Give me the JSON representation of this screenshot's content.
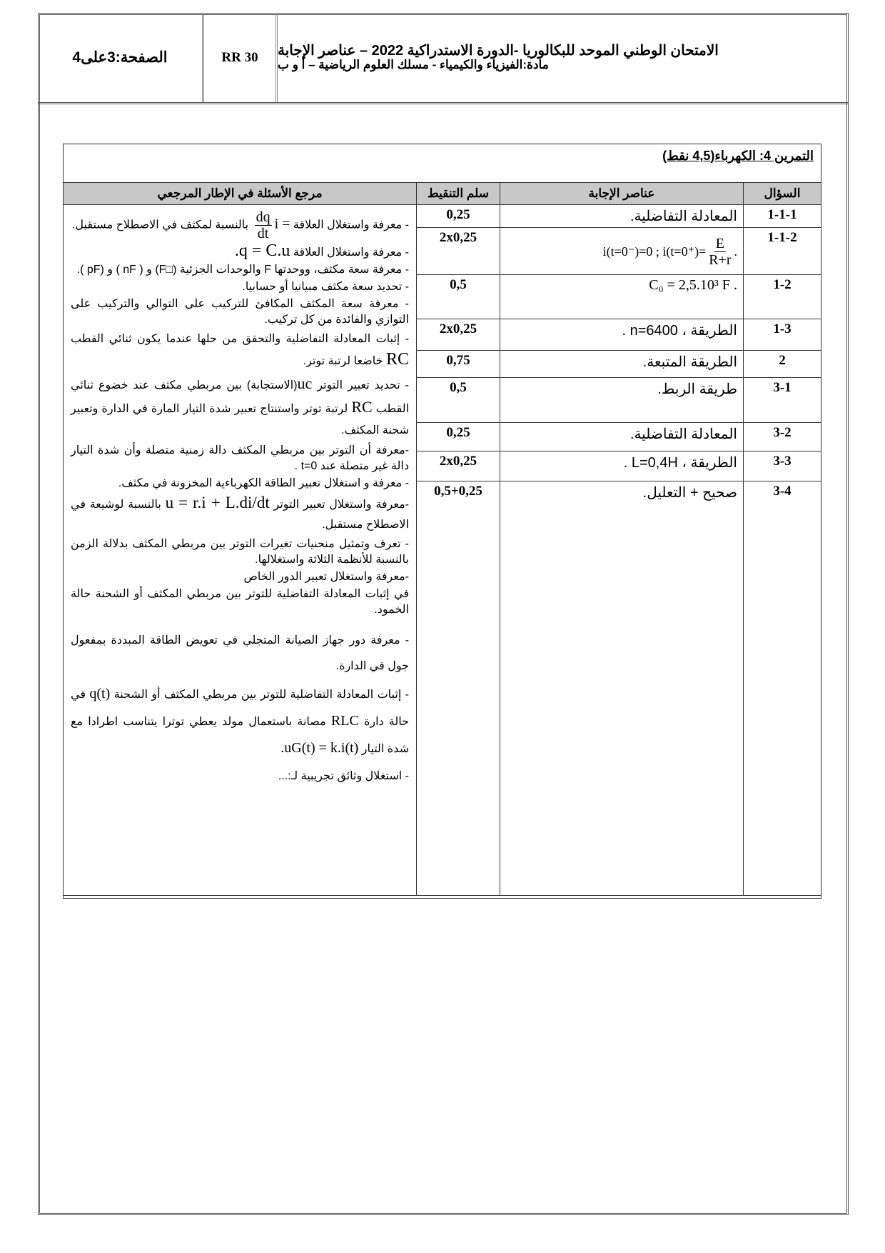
{
  "header": {
    "page": "الصفحة:3على4",
    "code": "RR 30",
    "title_line1": "الامتحان الوطني الموحد للبكالوريا -الدورة الاستدراكية 2022 – عناصر الإجابة",
    "title_line2": "مادة:الفيزياء والكيمياء - مسلك العلوم الرياضية – أ و ب"
  },
  "exercise_title": "التمرين 4: الكهرباء(4,5 نقط)",
  "columns": {
    "question": "السؤال",
    "answer": "عناصر الإجابة",
    "score": "سلم التنقيط",
    "reference": "مرجع الأسئلة في الإطار المرجعي"
  },
  "rows": [
    {
      "question": "1-1-1",
      "answer": "المعادلة التفاضلية.",
      "score": "0,25"
    },
    {
      "question": "1-1-2",
      "answer_pre": "i(t=0⁻)=0  ; i(t=0⁺)=",
      "answer_num": "E",
      "answer_den": "R+r",
      "answer_post": ".",
      "score": "2x0,25"
    },
    {
      "question": "1-2",
      "answer": "C₀ = 2,5.10³ F .",
      "score": "0,5"
    },
    {
      "question": "1-3",
      "answer": "الطريقة ،  n=6400 .",
      "score": "2x0,25"
    },
    {
      "question": "2",
      "answer": "الطريقة المتبعة.",
      "score": "0,75"
    },
    {
      "question": "3-1",
      "answer": "طريقة الربط.",
      "score": "0,5"
    },
    {
      "question": "3-2",
      "answer": "المعادلة التفاضلية.",
      "score": "0,25"
    },
    {
      "question": "3-3",
      "answer": "الطريقة ،  L=0,4H .",
      "score": "2x0,25"
    },
    {
      "question": "3-4",
      "answer": "صحيح + التعليل.",
      "score": "0,5+0,25"
    }
  ],
  "references": {
    "r1_pre": "- معرفة واستغلال العلاقة",
    "r1_lhs": "i =",
    "r1_num": "dq",
    "r1_den": "dt",
    "r1_post": "بالنسبة لمكثف في الاصطلاح مستقبل.",
    "r2_pre": "- معرفة واستغلال العلاقة",
    "r2_formula": ".q = C.u",
    "r3": "- معرفة سعة مكثف، ووحدتها F والوحدات الجزئية (□F) و ( nF ) و (pF ).",
    "r4": "- تحديد سعة مكثف مبيانيا أو حسابيا.",
    "r5": "- معرفة سعة المكثف المكافئ للتركيب على التوالي والتركيب على التوازي والفائدة من كل تركيب.",
    "r6_pre": "- إثبات المعادلة التفاضلية والتحقق من حلها عندما يكون ثنائي القطب",
    "r6_formula": "RC",
    "r6_post": "خاضعا لرتبة توتر.",
    "r7_pre": "- تحديد تعبير التوتر",
    "r7_formula": "uc",
    "r7_mid": "(الاستجابة) بين مربطي مكثف عند خضوع ثنائي القطب",
    "r7_formula2": "RC",
    "r7_post": "لرتبة توتر واستنتاج تعبير شدة التيار المارة في الدارة وتعبير شحنة المكثف.",
    "r8": "-معرفة أن التوتر بين مربطي المكثف دالة زمنية متصلة وأن شدة التيار دالة غير متصلة عند t=0 .",
    "r9": "- معرفة و استغلال تعبير الطاقة الكهرباءية المخزونة في مكثف.",
    "r10_pre": "-معرفة واستغلال تعبير التوتر",
    "r10_formula": "u = r.i + L.di/dt",
    "r10_post": "بالنسبة لوشيعة في الاصطلاح مستقبل.",
    "r11": "- تعرف وتمثيل منحنيات تغيرات التوتر بين مربطي المكثف بدلالة الزمن بالنسبة للأنظمة الثلاثة واستغلالها.",
    "r12": "-معرفة واستغلال تعبير الدور الخاص",
    "r13": "في إثبات المعادلة التفاضلية للتوتر بين مربطي المكثف أو الشحنة حالة الخمود.",
    "r14": "- معرفة دور جهاز الصيانة المتجلي في تعويض الطاقة المبددة بمفعول جول في الدارة.",
    "r15_pre": "- إثبات المعادلة التفاضلية للتوتر بين مربطي المكثف أو الشحنة",
    "r15_q": "q(t)",
    "r15_mid": "في حالة دارة",
    "r15_rlc": "RLC",
    "r15_post": "مصانة باستعمال مولد يعطي توترا يتناسب اطرادا مع شدة التيار",
    "r15_formula": ".uG(t) = k.i(t)",
    "r16": "- استغلال وثائق تجريبية لـ:..."
  }
}
